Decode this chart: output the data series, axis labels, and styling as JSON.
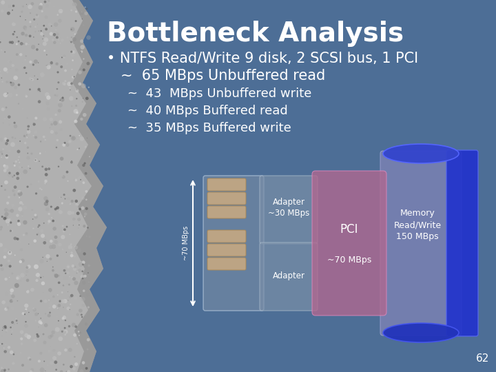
{
  "title": "Bottleneck Analysis",
  "title_color": "#FFFFFF",
  "title_fontsize": 28,
  "bg_color": "#4D6E96",
  "bullet_text": "NTFS Read/Write 9 disk, 2 SCSI bus, 1 PCI",
  "line1": "~  65 MBps Unbuffered read",
  "line2": "~  43  MBps Unbuffered write",
  "line3": "~  40 MBps Buffered read",
  "line4": "~  35 MBps Buffered write",
  "text_color": "#FFFFFF",
  "bullet_fontsize": 15,
  "sub_fontsize": 13,
  "page_num": "62",
  "rock_base": "#B0B0B0",
  "rock_edge": "#8A8A8A",
  "disk_color": "#C4A882",
  "disk_edge": "#AA8855",
  "scsi_pipe_color": "#7B90A8",
  "adapter_color": "#7A8FA8",
  "pci_color": "#B06890",
  "mem_body_color": "#8888BB",
  "mem_cap_color": "#3344CC",
  "mem_side_color": "#2233CC"
}
